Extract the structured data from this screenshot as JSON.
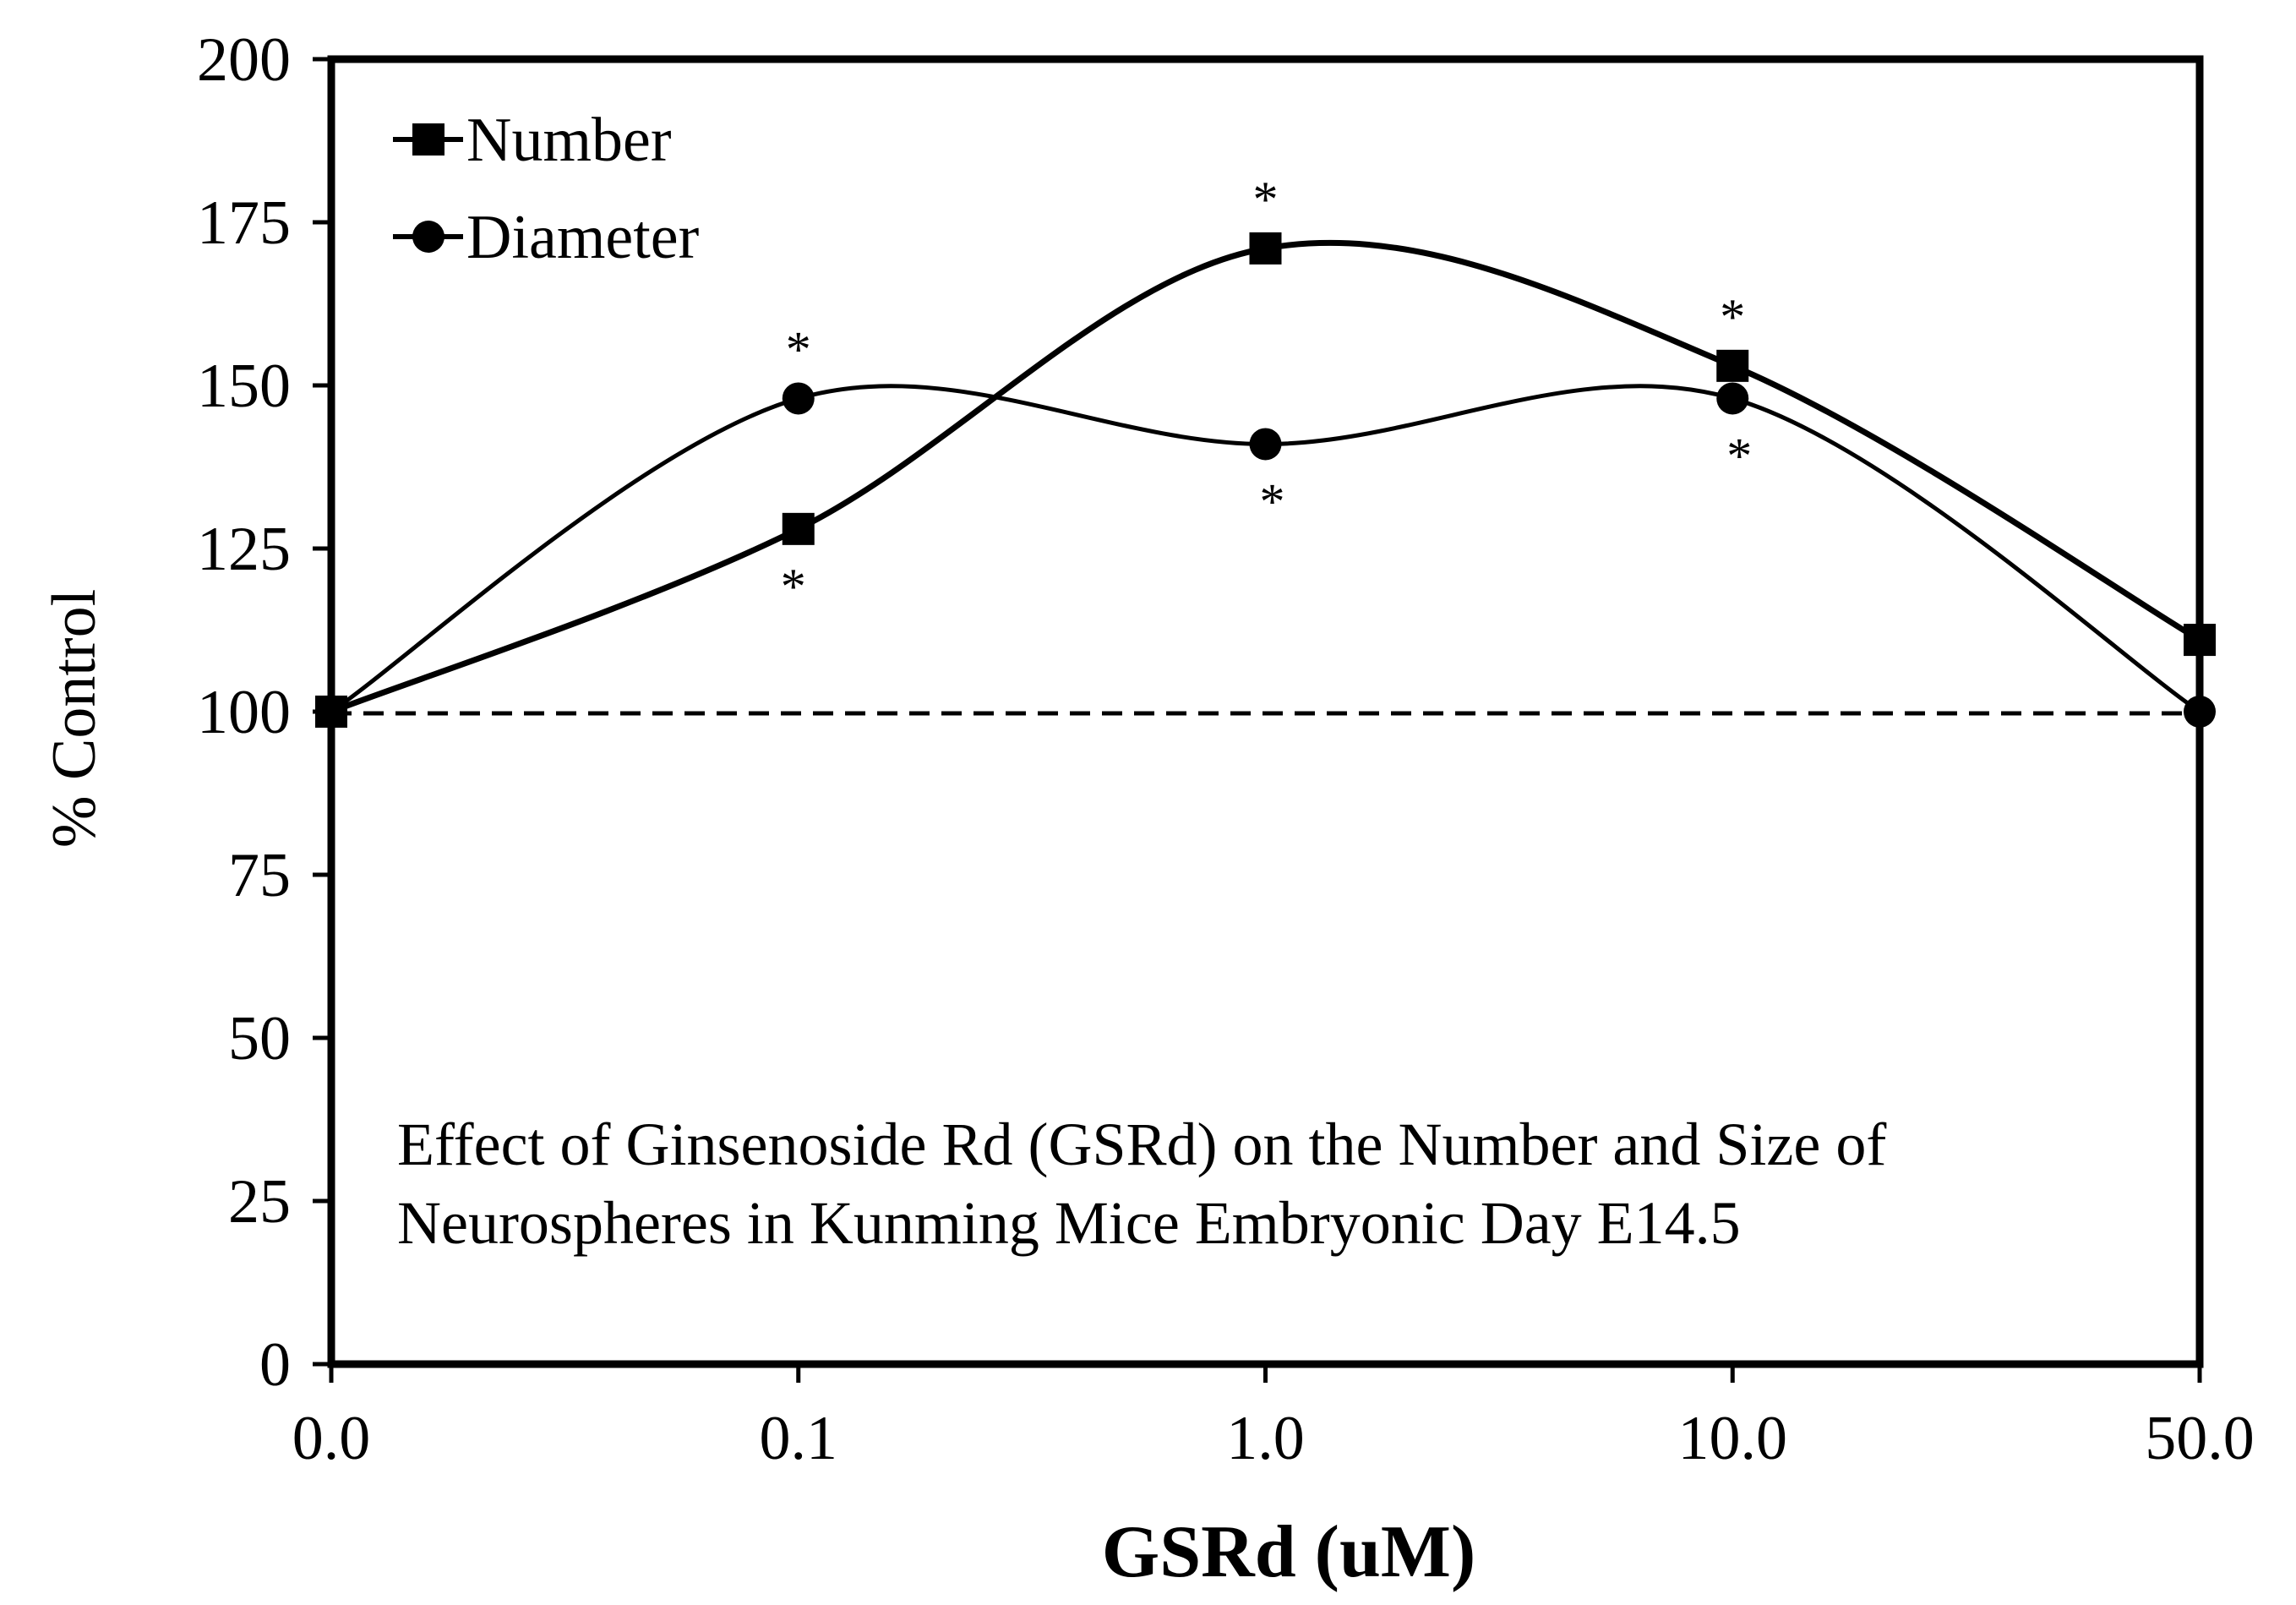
{
  "chart_data": {
    "type": "line",
    "title": "",
    "annotation_lines": [
      "Effect of Ginsenoside Rd (GSRd) on the Number and Size of",
      "Neurospheres in Kunming Mice Embryonic Day E14.5"
    ],
    "xlabel": "GSRd (uM)",
    "ylabel": "% Control",
    "categories": [
      "0.0",
      "0.1",
      "1.0",
      "10.0",
      "50.0"
    ],
    "ylim": [
      0,
      200
    ],
    "yticks": [
      "0",
      "25",
      "50",
      "75",
      "100",
      "125",
      "150",
      "175",
      "200"
    ],
    "reference_line": 100,
    "legend_position": "top-left",
    "series": [
      {
        "name": "Number",
        "marker": "square",
        "values": [
          100,
          128,
          171,
          153,
          111
        ],
        "significance": [
          "",
          "*",
          "*",
          "*",
          ""
        ]
      },
      {
        "name": "Diameter",
        "marker": "circle",
        "values": [
          100,
          148,
          141,
          148,
          100
        ],
        "significance": [
          "",
          "*",
          "*",
          "*",
          ""
        ]
      }
    ],
    "grid": false
  }
}
